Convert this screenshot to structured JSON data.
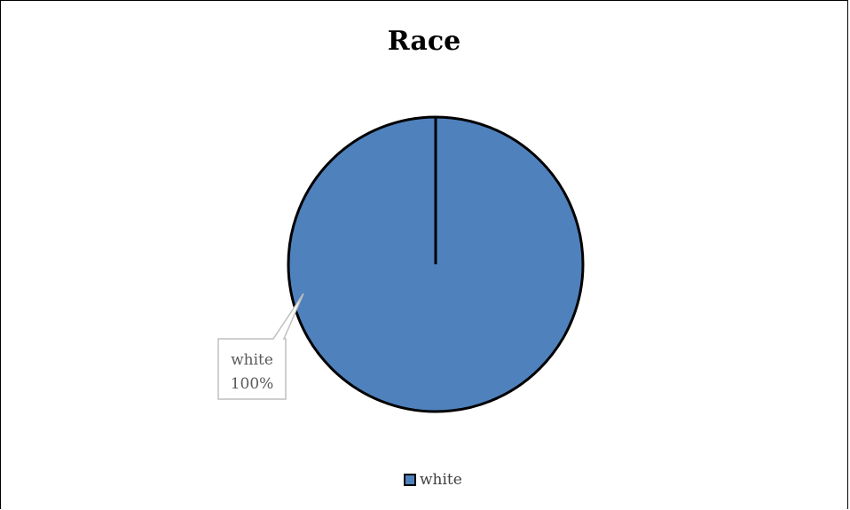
{
  "chart_data": {
    "type": "pie",
    "title": "Race",
    "slices": [
      {
        "label": "white",
        "value": 100,
        "color": "#4f81bd"
      }
    ],
    "data_labels": [
      {
        "line1": "white",
        "line2": "100%"
      }
    ],
    "legend": {
      "position": "bottom",
      "entries": [
        "white"
      ]
    },
    "outline_color": "#000000",
    "label_color": "#595959"
  }
}
